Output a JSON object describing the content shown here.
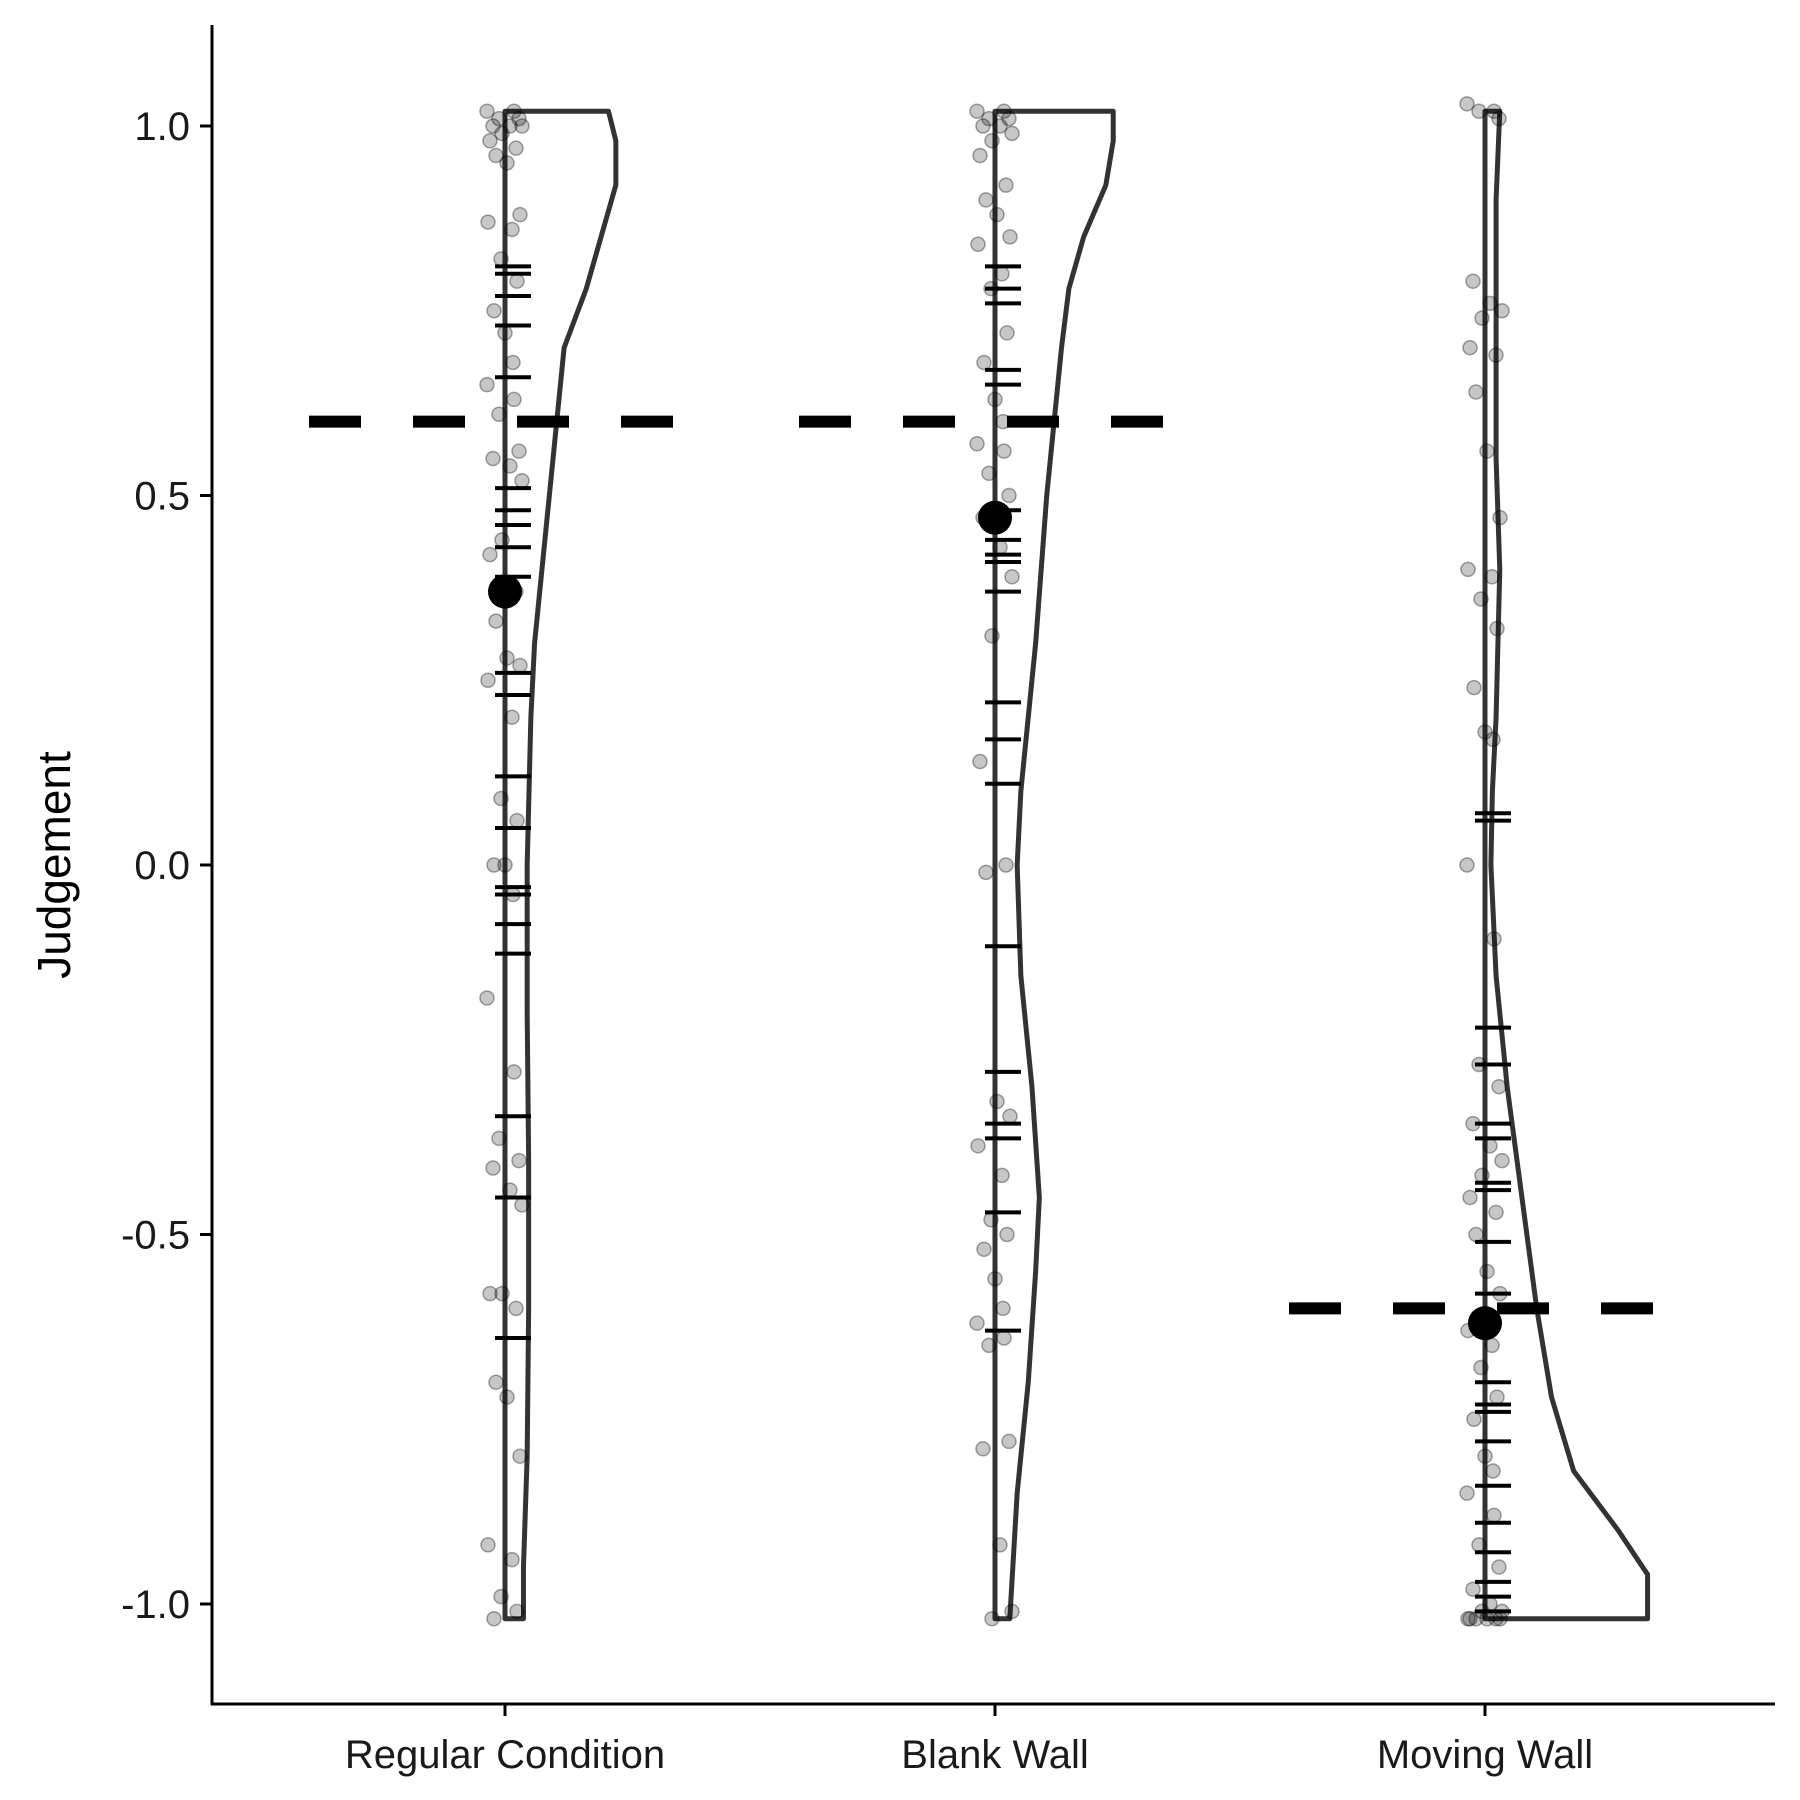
{
  "chart_data": {
    "type": "half-violin with jittered points and rug marks",
    "title": "",
    "xlabel": "",
    "ylabel": "Judgement",
    "ylim": [
      -1.12,
      1.12
    ],
    "yticks": [
      {
        "value": 1.0,
        "label": "1.0"
      },
      {
        "value": 0.5,
        "label": "0.5"
      },
      {
        "value": 0.0,
        "label": "0.0"
      },
      {
        "value": -0.5,
        "label": "-0.5"
      },
      {
        "value": -1.0,
        "label": "-1.0"
      }
    ],
    "categories": [
      "Regular Condition",
      "Blank Wall",
      "Moving Wall"
    ],
    "grid": false,
    "legend": "none",
    "colors": {
      "line": "#333333",
      "point": "#000000",
      "dash": "#000000"
    },
    "series": [
      {
        "category": "Regular Condition",
        "mean": 0.37,
        "reference_line": 0.6,
        "violin": [
          [
            1.02,
            0.14
          ],
          [
            0.98,
            0.15
          ],
          [
            0.92,
            0.15
          ],
          [
            0.85,
            0.13
          ],
          [
            0.78,
            0.11
          ],
          [
            0.7,
            0.08
          ],
          [
            0.6,
            0.07
          ],
          [
            0.5,
            0.06
          ],
          [
            0.4,
            0.05
          ],
          [
            0.3,
            0.04
          ],
          [
            0.2,
            0.035
          ],
          [
            0.0,
            0.03
          ],
          [
            -0.2,
            0.03
          ],
          [
            -0.4,
            0.032
          ],
          [
            -0.6,
            0.032
          ],
          [
            -0.8,
            0.03
          ],
          [
            -0.95,
            0.025
          ],
          [
            -1.02,
            0.025
          ]
        ],
        "rug": [
          0.81,
          0.8,
          0.77,
          0.73,
          0.66,
          0.51,
          0.48,
          0.46,
          0.43,
          0.39,
          0.26,
          0.23,
          0.12,
          0.05,
          -0.03,
          -0.04,
          -0.08,
          -0.12,
          -0.34,
          -0.45,
          -0.64
        ],
        "points": [
          1.02,
          1.02,
          1.01,
          1.01,
          1.0,
          1.0,
          1.0,
          0.99,
          0.98,
          0.97,
          0.96,
          0.95,
          0.88,
          0.87,
          0.86,
          0.82,
          0.79,
          0.75,
          0.72,
          0.68,
          0.65,
          0.63,
          0.61,
          0.56,
          0.55,
          0.54,
          0.52,
          0.44,
          0.42,
          0.37,
          0.33,
          0.28,
          0.27,
          0.25,
          0.2,
          0.09,
          0.06,
          0.0,
          0.0,
          -0.04,
          -0.18,
          -0.28,
          -0.37,
          -0.4,
          -0.41,
          -0.44,
          -0.46,
          -0.58,
          -0.58,
          -0.6,
          -0.7,
          -0.72,
          -0.8,
          -0.92,
          -0.94,
          -0.99,
          -1.01,
          -1.02
        ]
      },
      {
        "category": "Blank Wall",
        "mean": 0.47,
        "reference_line": 0.6,
        "violin": [
          [
            1.02,
            0.16
          ],
          [
            0.98,
            0.16
          ],
          [
            0.92,
            0.15
          ],
          [
            0.85,
            0.12
          ],
          [
            0.78,
            0.1
          ],
          [
            0.7,
            0.09
          ],
          [
            0.6,
            0.08
          ],
          [
            0.5,
            0.07
          ],
          [
            0.3,
            0.055
          ],
          [
            0.1,
            0.035
          ],
          [
            0.0,
            0.03
          ],
          [
            -0.15,
            0.035
          ],
          [
            -0.3,
            0.05
          ],
          [
            -0.45,
            0.06
          ],
          [
            -0.55,
            0.055
          ],
          [
            -0.7,
            0.045
          ],
          [
            -0.85,
            0.03
          ],
          [
            -1.02,
            0.02
          ]
        ],
        "rug": [
          0.81,
          0.78,
          0.76,
          0.67,
          0.65,
          0.48,
          0.44,
          0.42,
          0.41,
          0.37,
          0.22,
          0.17,
          0.11,
          -0.11,
          -0.28,
          -0.35,
          -0.37,
          -0.47,
          -0.63
        ],
        "points": [
          1.02,
          1.02,
          1.01,
          1.01,
          1.0,
          1.0,
          0.99,
          0.98,
          0.96,
          0.92,
          0.9,
          0.88,
          0.85,
          0.84,
          0.8,
          0.78,
          0.72,
          0.68,
          0.63,
          0.6,
          0.57,
          0.56,
          0.53,
          0.5,
          0.47,
          0.43,
          0.39,
          0.31,
          0.14,
          0.0,
          -0.01,
          -0.32,
          -0.34,
          -0.38,
          -0.42,
          -0.48,
          -0.5,
          -0.52,
          -0.56,
          -0.6,
          -0.62,
          -0.64,
          -0.65,
          -0.78,
          -0.79,
          -0.92,
          -1.01,
          -1.02
        ]
      },
      {
        "category": "Moving Wall",
        "mean": -0.62,
        "reference_line": -0.6,
        "violin": [
          [
            1.02,
            0.02
          ],
          [
            0.9,
            0.015
          ],
          [
            0.7,
            0.015
          ],
          [
            0.55,
            0.015
          ],
          [
            0.4,
            0.02
          ],
          [
            0.2,
            0.015
          ],
          [
            0.1,
            0.01
          ],
          [
            0.0,
            0.008
          ],
          [
            -0.15,
            0.015
          ],
          [
            -0.3,
            0.03
          ],
          [
            -0.45,
            0.05
          ],
          [
            -0.6,
            0.07
          ],
          [
            -0.72,
            0.09
          ],
          [
            -0.82,
            0.12
          ],
          [
            -0.9,
            0.18
          ],
          [
            -0.96,
            0.22
          ],
          [
            -1.02,
            0.22
          ]
        ],
        "rug": [
          0.07,
          0.06,
          -0.22,
          -0.27,
          -0.35,
          -0.37,
          -0.43,
          -0.44,
          -0.51,
          -0.58,
          -0.7,
          -0.73,
          -0.74,
          -0.78,
          -0.84,
          -0.89,
          -0.93,
          -0.97,
          -0.99,
          -1.01
        ],
        "points": [
          1.03,
          1.02,
          1.02,
          1.01,
          0.79,
          0.76,
          0.75,
          0.74,
          0.7,
          0.69,
          0.64,
          0.56,
          0.47,
          0.4,
          0.39,
          0.36,
          0.32,
          0.24,
          0.18,
          0.17,
          0.0,
          -0.1,
          -0.27,
          -0.3,
          -0.35,
          -0.38,
          -0.4,
          -0.42,
          -0.45,
          -0.47,
          -0.5,
          -0.55,
          -0.58,
          -0.63,
          -0.65,
          -0.68,
          -0.72,
          -0.75,
          -0.8,
          -0.82,
          -0.85,
          -0.88,
          -0.92,
          -0.95,
          -0.98,
          -1.0,
          -1.01,
          -1.01,
          -1.02,
          -1.02,
          -1.02,
          -1.02,
          -1.02,
          -1.02
        ]
      }
    ]
  }
}
